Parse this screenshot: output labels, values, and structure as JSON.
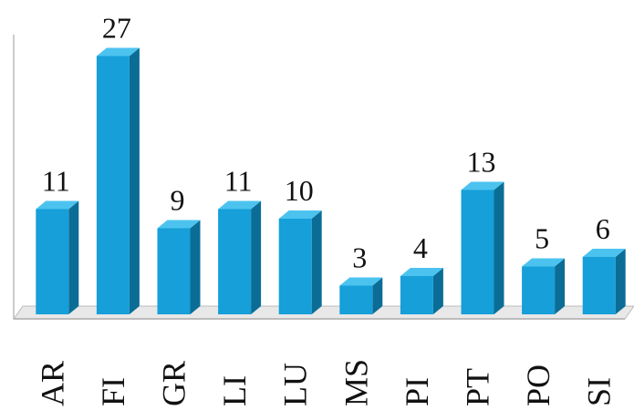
{
  "chart_data": {
    "type": "bar3d",
    "categories": [
      "AR",
      "FI",
      "GR",
      "LI",
      "LU",
      "MS",
      "PI",
      "PT",
      "PO",
      "SI"
    ],
    "values": [
      11,
      27,
      9,
      11,
      10,
      3,
      4,
      13,
      5,
      6
    ],
    "color": "#169fd9",
    "ylim": [
      0,
      30
    ]
  }
}
